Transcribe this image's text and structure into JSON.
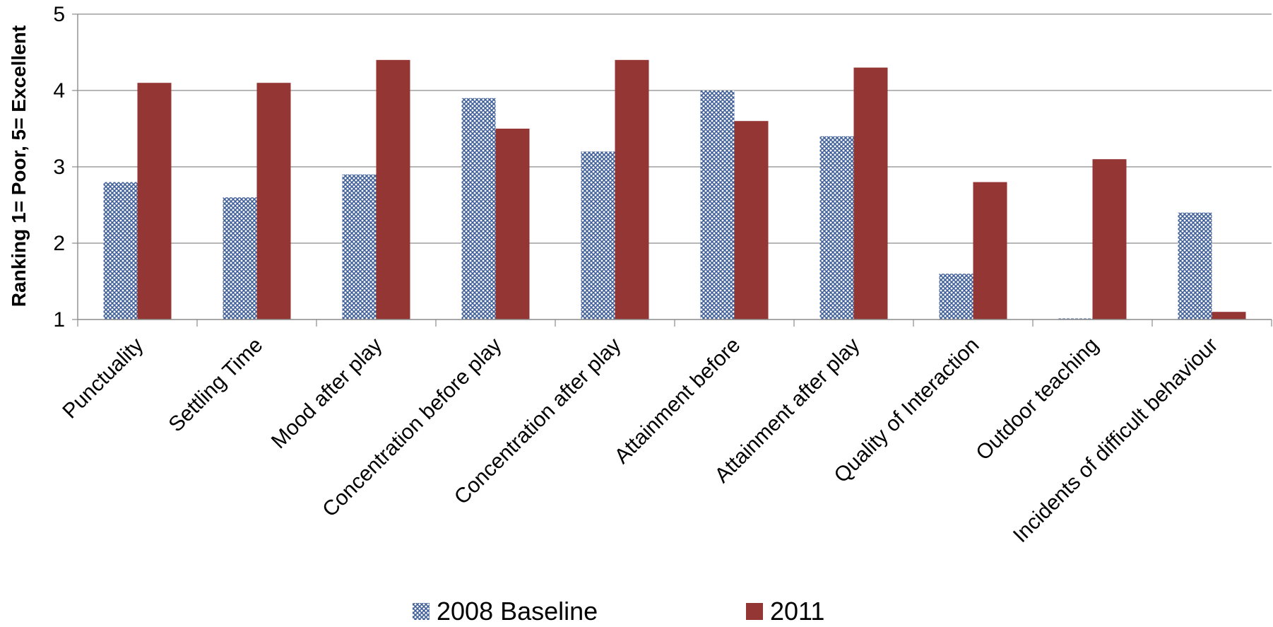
{
  "chart_data": {
    "type": "bar",
    "title": "",
    "xlabel": "",
    "ylabel": "Ranking 1= Poor, 5= Excellent",
    "ylim": [
      1,
      5
    ],
    "yticks": [
      "1",
      "2",
      "3",
      "4",
      "5"
    ],
    "grid": true,
    "legend_position": "bottom",
    "categories": [
      "Punctuality",
      "Settling Time",
      "Mood after play",
      "Concentration before play",
      "Concentration after play",
      "Attainment before",
      "Attainment after play",
      "Quality of Interaction",
      "Outdoor teaching",
      "Incidents of difficult behaviour"
    ],
    "series": [
      {
        "name": "2008 Baseline",
        "color": "#4F6FA8",
        "pattern": "crosshatch",
        "values": [
          2.8,
          2.6,
          2.9,
          3.9,
          3.2,
          4.0,
          3.4,
          1.6,
          1.0,
          2.4
        ]
      },
      {
        "name": "2011",
        "color": "#943634",
        "pattern": "solid",
        "values": [
          4.1,
          4.1,
          4.4,
          3.5,
          4.4,
          3.6,
          4.3,
          2.8,
          3.1,
          1.1
        ]
      }
    ]
  }
}
